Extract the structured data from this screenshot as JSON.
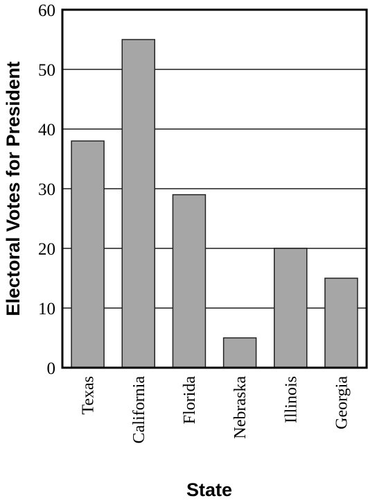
{
  "chart_data": {
    "type": "bar",
    "categories": [
      "Texas",
      "California",
      "Florida",
      "Nebraska",
      "Illinois",
      "Georgia"
    ],
    "values": [
      38,
      55,
      29,
      5,
      20,
      15
    ],
    "title": "",
    "xlabel": "State",
    "ylabel": "Electoral Votes for President",
    "ylim": [
      0,
      60
    ],
    "yticks": [
      "0",
      "10",
      "20",
      "30",
      "40",
      "50",
      "60"
    ],
    "grid": true,
    "colors": {
      "bar": "#a6a6a6",
      "bar_edge": "#222222",
      "grid": "#555555"
    }
  }
}
